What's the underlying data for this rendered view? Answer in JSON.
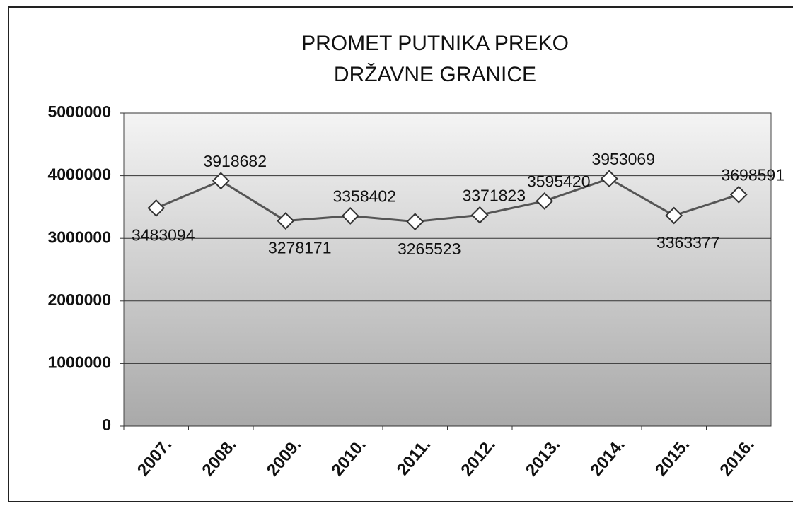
{
  "chart_data": {
    "type": "line",
    "title": "PROMET PUTNIKA PREKO DRŽAVNE GRANICE",
    "categories": [
      "2007.",
      "2008.",
      "2009.",
      "2010.",
      "2011.",
      "2012.",
      "2013.",
      "2014.",
      "2015.",
      "2016."
    ],
    "values": [
      3483094,
      3918682,
      3278171,
      3358402,
      3265523,
      3371823,
      3595420,
      3953069,
      3363377,
      3698591
    ],
    "color": "#555555",
    "ylim": [
      0,
      5000000
    ],
    "yticks": [
      0,
      1000000,
      2000000,
      3000000,
      4000000,
      5000000
    ],
    "grid": true
  }
}
